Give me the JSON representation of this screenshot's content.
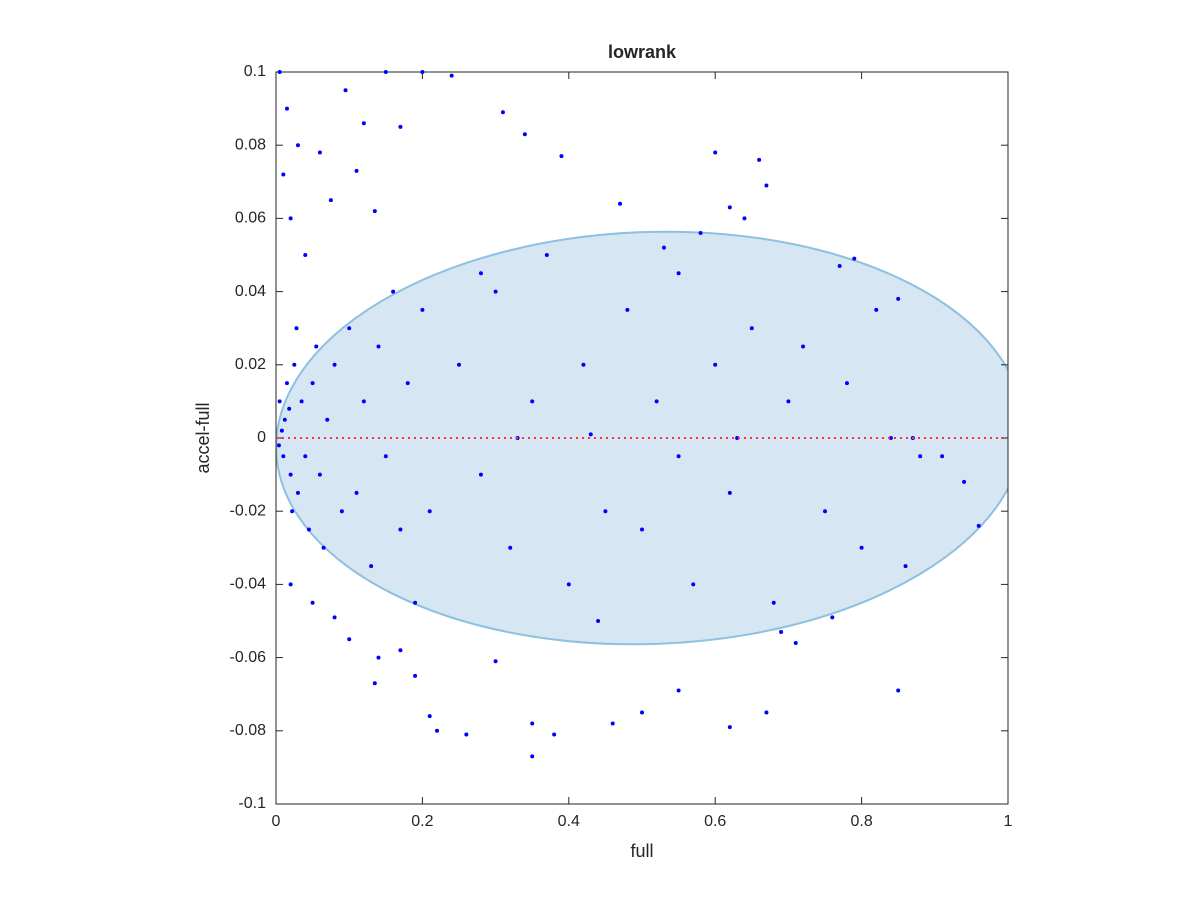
{
  "chart_data": {
    "type": "scatter",
    "title": "lowrank",
    "x_label": "full",
    "y_label": "accel-full",
    "xlim": [
      0,
      1
    ],
    "ylim": [
      -0.1,
      0.1
    ],
    "xticks": [
      0,
      0.2,
      0.4,
      0.6,
      0.8,
      1
    ],
    "yticks": [
      -0.1,
      -0.08,
      -0.06,
      -0.04,
      -0.02,
      0,
      0.02,
      0.04,
      0.06,
      0.08,
      0.1
    ],
    "reference_line": {
      "y": 0,
      "color": "#ff3333"
    },
    "series": [
      {
        "color": "#0000ff",
        "x": [
          0.005,
          0.01,
          0.008,
          0.015,
          0.02,
          0.012,
          0.025,
          0.03,
          0.004,
          0.018,
          0.022,
          0.035,
          0.04,
          0.028,
          0.045,
          0.05,
          0.06,
          0.055,
          0.07,
          0.065,
          0.08,
          0.09,
          0.1,
          0.11,
          0.12,
          0.13,
          0.14,
          0.15,
          0.16,
          0.17,
          0.18,
          0.19,
          0.2,
          0.21,
          0.005,
          0.01,
          0.015,
          0.02,
          0.03,
          0.04,
          0.06,
          0.075,
          0.095,
          0.11,
          0.12,
          0.135,
          0.15,
          0.17,
          0.2,
          0.24,
          0.31,
          0.34,
          0.39,
          0.47,
          0.58,
          0.62,
          0.6,
          0.66,
          0.64,
          0.67,
          0.79,
          0.02,
          0.05,
          0.08,
          0.1,
          0.135,
          0.14,
          0.17,
          0.19,
          0.21,
          0.22,
          0.26,
          0.3,
          0.35,
          0.38,
          0.35,
          0.46,
          0.5,
          0.55,
          0.62,
          0.67,
          0.71,
          0.85,
          0.25,
          0.28,
          0.3,
          0.32,
          0.35,
          0.37,
          0.4,
          0.42,
          0.45,
          0.48,
          0.5,
          0.52,
          0.55,
          0.57,
          0.6,
          0.62,
          0.65,
          0.68,
          0.7,
          0.72,
          0.75,
          0.78,
          0.8,
          0.82,
          0.84,
          0.86,
          0.88,
          0.91,
          0.94,
          0.96,
          0.77,
          0.85,
          0.87,
          0.76,
          0.69,
          0.43,
          0.33,
          0.55,
          0.63,
          0.28,
          0.44,
          0.53
        ],
        "values": [
          0.01,
          -0.005,
          0.002,
          0.015,
          -0.01,
          0.005,
          0.02,
          -0.015,
          -0.002,
          0.008,
          -0.02,
          0.01,
          -0.005,
          0.03,
          -0.025,
          0.015,
          -0.01,
          0.025,
          0.005,
          -0.03,
          0.02,
          -0.02,
          0.03,
          -0.015,
          0.01,
          -0.035,
          0.025,
          -0.005,
          0.04,
          -0.025,
          0.015,
          -0.045,
          0.035,
          -0.02,
          0.1,
          0.072,
          0.09,
          0.06,
          0.08,
          0.05,
          0.078,
          0.065,
          0.095,
          0.073,
          0.086,
          0.062,
          0.1,
          0.085,
          0.1,
          0.099,
          0.089,
          0.083,
          0.077,
          0.064,
          0.056,
          0.063,
          0.078,
          0.076,
          0.06,
          0.069,
          0.049,
          -0.04,
          -0.045,
          -0.049,
          -0.055,
          -0.067,
          -0.06,
          -0.058,
          -0.065,
          -0.076,
          -0.08,
          -0.081,
          -0.061,
          -0.078,
          -0.081,
          -0.087,
          -0.078,
          -0.075,
          -0.069,
          -0.079,
          -0.075,
          -0.056,
          -0.069,
          0.02,
          -0.01,
          0.04,
          -0.03,
          0.01,
          0.05,
          -0.04,
          0.02,
          -0.02,
          0.035,
          -0.025,
          0.01,
          0.045,
          -0.04,
          0.02,
          -0.015,
          0.03,
          -0.045,
          0.01,
          0.025,
          -0.02,
          0.015,
          -0.03,
          0.035,
          0.0,
          -0.035,
          -0.005,
          -0.005,
          -0.012,
          -0.024,
          0.047,
          0.038,
          0.0,
          -0.049,
          -0.053,
          0.001,
          0.0,
          -0.005,
          0.0,
          0.045,
          -0.05,
          0.052
        ]
      }
    ]
  }
}
